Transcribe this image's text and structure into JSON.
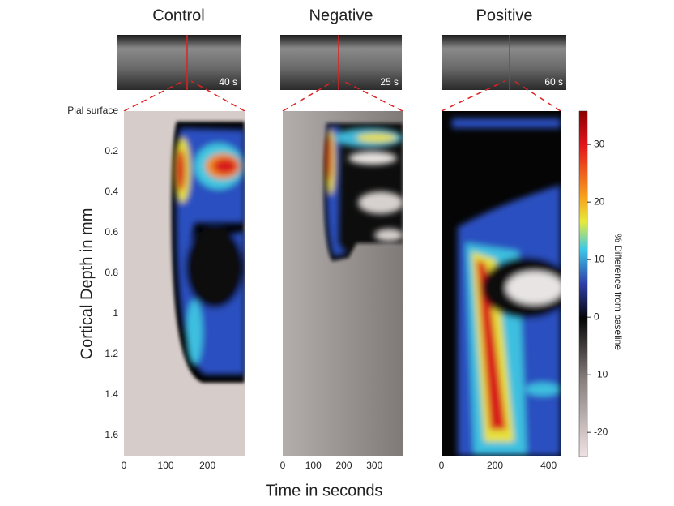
{
  "chart_data": [
    {
      "type": "heatmap",
      "title": "Control",
      "photo_label": "40 s",
      "xlim": [
        0,
        289
      ],
      "xticks": [
        0,
        100,
        200
      ],
      "ylim": [
        0,
        1.7
      ],
      "yticks": [
        {
          "value": 0,
          "label": "Pial surface"
        },
        0.2,
        0.4,
        0.6,
        0.8,
        1,
        1.2,
        1.4,
        1.6
      ],
      "y_label": "Cortical Depth in mm"
    },
    {
      "type": "heatmap",
      "title": "Negative",
      "photo_label": "25 s",
      "xlim": [
        0,
        392
      ],
      "xticks": [
        0,
        100,
        200,
        300
      ]
    },
    {
      "type": "heatmap",
      "title": "Positive",
      "photo_label": "60 s",
      "xlim": [
        0,
        445
      ],
      "xticks": [
        0,
        200,
        400
      ]
    }
  ],
  "figure": {
    "x_label": "Time in seconds",
    "colorbar": {
      "label": "% Difference from baseline",
      "lim": [
        -24.2,
        35.8
      ],
      "ticks": [
        30,
        20,
        10,
        0,
        -10,
        -20
      ]
    }
  }
}
